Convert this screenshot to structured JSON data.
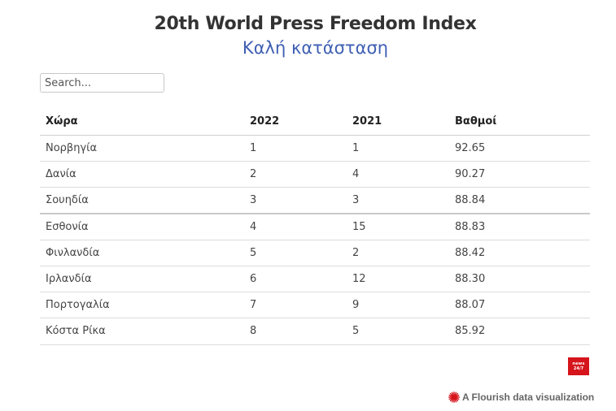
{
  "header": {
    "title": "20th World Press Freedom Index",
    "subtitle": "Καλή κατάσταση"
  },
  "search": {
    "placeholder": "Search..."
  },
  "table": {
    "columns": [
      "Χώρα",
      "2022",
      "2021",
      "Βαθμοί"
    ],
    "rows": [
      [
        "Νορβηγία",
        "1",
        "1",
        "92.65"
      ],
      [
        "Δανία",
        "2",
        "4",
        "90.27"
      ],
      [
        "Σουηδία",
        "3",
        "3",
        "88.84"
      ],
      [
        "Εσθονία",
        "4",
        "15",
        "88.83"
      ],
      [
        "Φινλανδία",
        "5",
        "2",
        "88.42"
      ],
      [
        "Ιρλανδία",
        "6",
        "12",
        "88.30"
      ],
      [
        "Πορτογαλία",
        "7",
        "9",
        "88.07"
      ],
      [
        "Κόστα Ρίκα",
        "8",
        "5",
        "85.92"
      ]
    ]
  },
  "logo": {
    "line1": "news",
    "line2": "24/7",
    "color": "#d6141b"
  },
  "credit": {
    "text": "A Flourish data visualization",
    "icon": "flourish-burst-icon",
    "icon_color": "#d6141b"
  },
  "colors": {
    "title": "#333333",
    "subtitle": "#3f5fb3",
    "row_divider": "#dcdcdc"
  }
}
